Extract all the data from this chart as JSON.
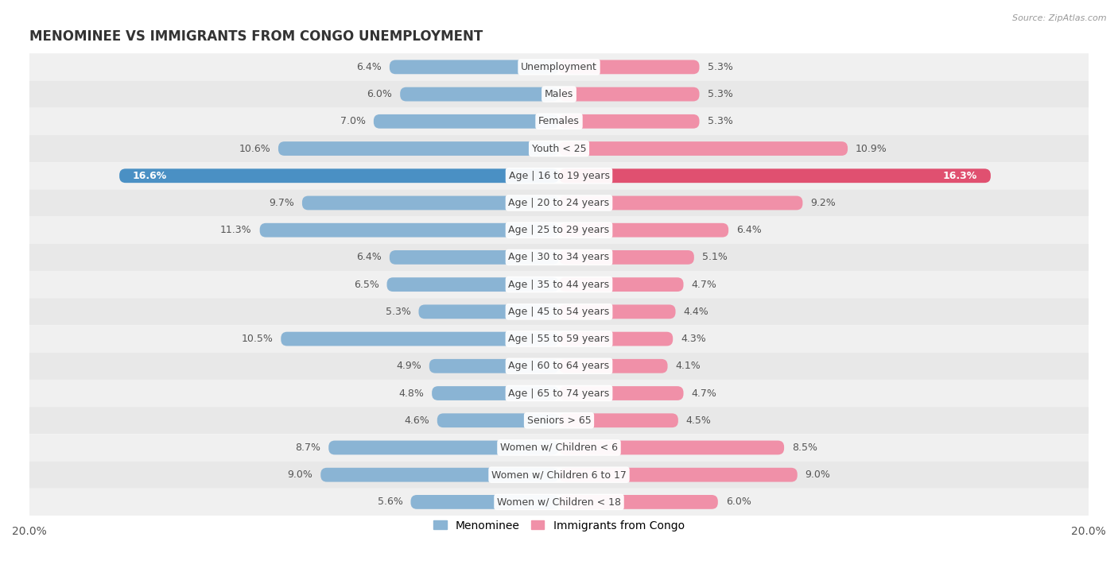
{
  "title": "MENOMINEE VS IMMIGRANTS FROM CONGO UNEMPLOYMENT",
  "source": "Source: ZipAtlas.com",
  "categories": [
    "Unemployment",
    "Males",
    "Females",
    "Youth < 25",
    "Age | 16 to 19 years",
    "Age | 20 to 24 years",
    "Age | 25 to 29 years",
    "Age | 30 to 34 years",
    "Age | 35 to 44 years",
    "Age | 45 to 54 years",
    "Age | 55 to 59 years",
    "Age | 60 to 64 years",
    "Age | 65 to 74 years",
    "Seniors > 65",
    "Women w/ Children < 6",
    "Women w/ Children 6 to 17",
    "Women w/ Children < 18"
  ],
  "menominee": [
    6.4,
    6.0,
    7.0,
    10.6,
    16.6,
    9.7,
    11.3,
    6.4,
    6.5,
    5.3,
    10.5,
    4.9,
    4.8,
    4.6,
    8.7,
    9.0,
    5.6
  ],
  "congo": [
    5.3,
    5.3,
    5.3,
    10.9,
    16.3,
    9.2,
    6.4,
    5.1,
    4.7,
    4.4,
    4.3,
    4.1,
    4.7,
    4.5,
    8.5,
    9.0,
    6.0
  ],
  "menominee_color": "#8ab4d4",
  "congo_color": "#f090a8",
  "menominee_highlight_color": "#4a90c4",
  "congo_highlight_color": "#e05070",
  "row_bg_odd": "#f0f0f0",
  "row_bg_even": "#e8e8e8",
  "xlim": 20.0,
  "legend_menominee": "Menominee",
  "legend_congo": "Immigrants from Congo",
  "title_fontsize": 12,
  "label_fontsize": 9,
  "cat_fontsize": 9,
  "bar_height": 0.52,
  "highlight_index": 4
}
